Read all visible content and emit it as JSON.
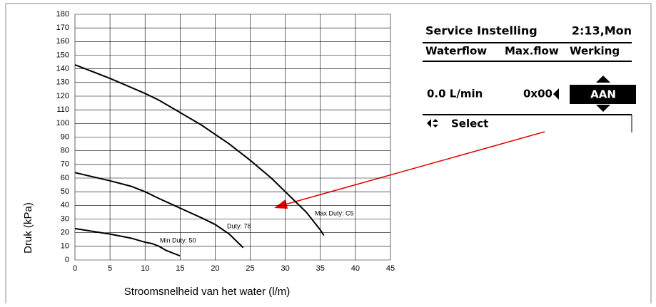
{
  "chart_data": {
    "type": "line",
    "xlabel": "Stroomsnelheid van het water (l/m)",
    "ylabel": "Druk (kPa)",
    "xlim": [
      0,
      45
    ],
    "ylim": [
      0,
      180
    ],
    "xticks": [
      0,
      5,
      10,
      15,
      20,
      25,
      30,
      35,
      40,
      45
    ],
    "yticks": [
      0,
      10,
      20,
      30,
      40,
      50,
      60,
      70,
      80,
      90,
      100,
      110,
      120,
      130,
      140,
      150,
      160,
      170,
      180
    ],
    "grid": true,
    "series": [
      {
        "name": "Max Duty: C5",
        "color": "#000000",
        "x": [
          0,
          5,
          10,
          12,
          15,
          18,
          20,
          22,
          25,
          28,
          30,
          31,
          33,
          35,
          35.5
        ],
        "values": [
          143,
          133,
          122,
          117,
          108,
          99,
          92,
          85,
          73,
          60,
          50,
          45,
          35,
          22,
          18
        ]
      },
      {
        "name": "Duty: 78",
        "color": "#000000",
        "x": [
          0,
          5,
          8,
          10,
          12,
          15,
          18,
          20,
          22,
          24
        ],
        "values": [
          64,
          58,
          54,
          50,
          45,
          38,
          31,
          26,
          19,
          9
        ]
      },
      {
        "name": "Min Duty: 50",
        "color": "#000000",
        "x": [
          0,
          5,
          8,
          10,
          11,
          12,
          13,
          15
        ],
        "values": [
          23,
          19,
          16,
          13,
          12,
          10,
          7,
          3
        ]
      }
    ]
  },
  "panel": {
    "title": "Service Instelling",
    "time": "2:13,Mon",
    "headers": [
      "Waterflow",
      "Max.flow",
      "Werking"
    ],
    "values": [
      "0.0 L/min",
      "0x00",
      "AAN"
    ],
    "footer": "Select"
  }
}
